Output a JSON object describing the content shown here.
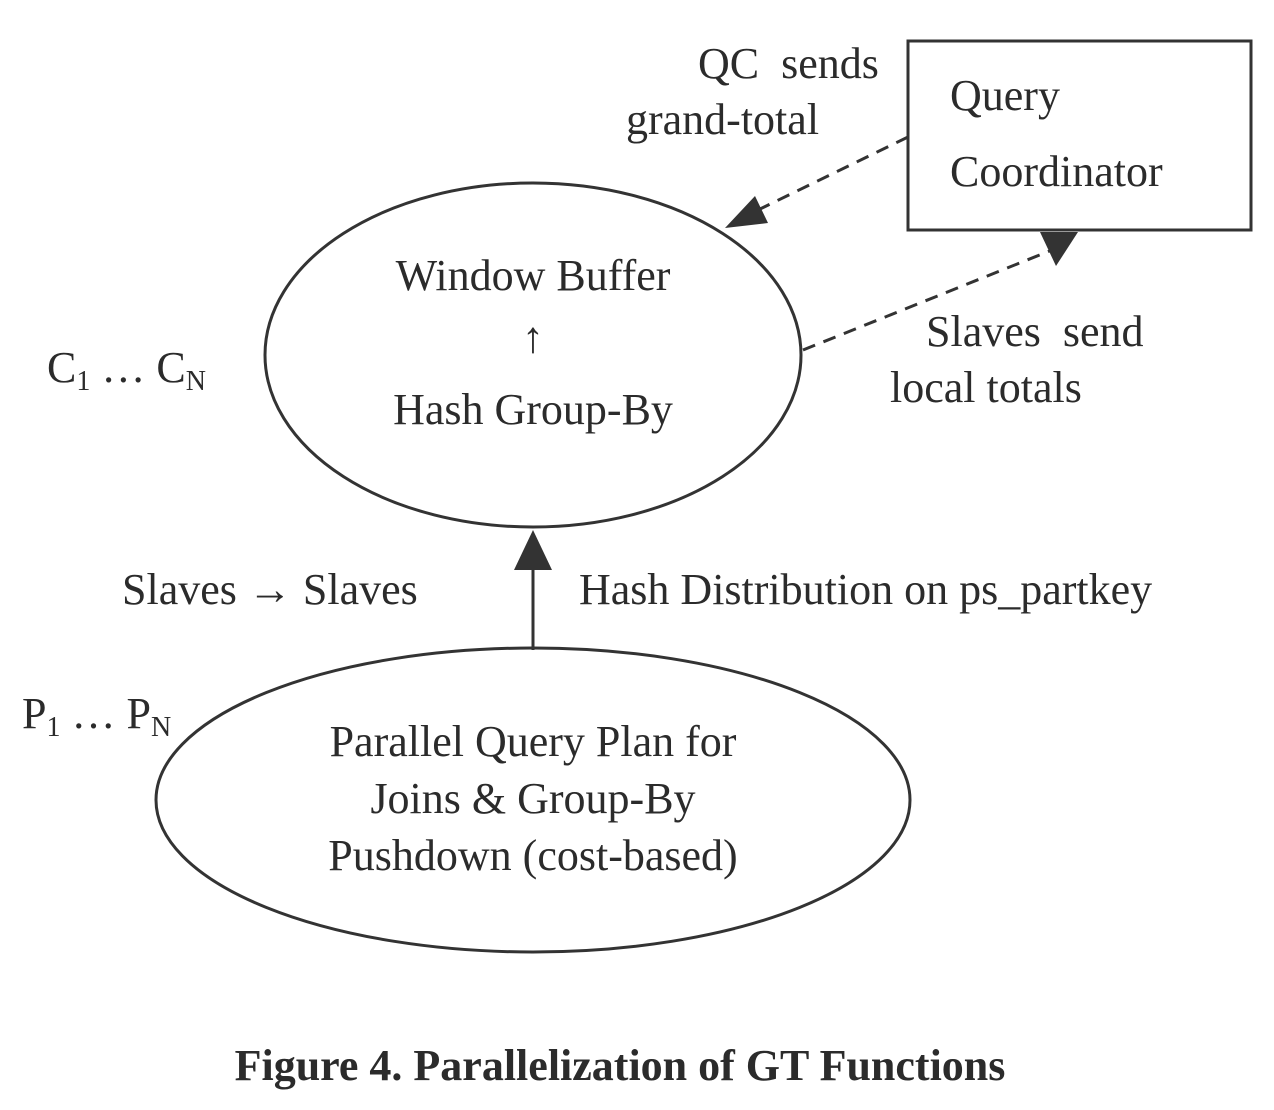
{
  "diagram": {
    "window_node": {
      "line1": "Window Buffer",
      "arrow": "↑",
      "line2": "Hash Group-By"
    },
    "plan_node": {
      "line1": "Parallel Query Plan for",
      "line2": "Joins & Group-By",
      "line3": "Pushdown (cost-based)"
    },
    "coordinator_box": {
      "line1": "Query",
      "line2": "Coordinator"
    },
    "qc_sends": {
      "line1": "QC  sends",
      "line2": "grand-total"
    },
    "slaves_send": {
      "line1": "Slaves  send",
      "line2": "local totals"
    },
    "consumers": {
      "c": "C",
      "sub1": "1",
      "ellipsis": " … C",
      "subN": "N"
    },
    "producers": {
      "p": "P",
      "sub1": "1",
      "ellipsis": " … P",
      "subN": "N"
    },
    "slaves_to_slaves": "Slaves → Slaves",
    "hash_distribution": "Hash Distribution on ps_partkey"
  },
  "caption": "Figure 4. Parallelization of GT Functions"
}
